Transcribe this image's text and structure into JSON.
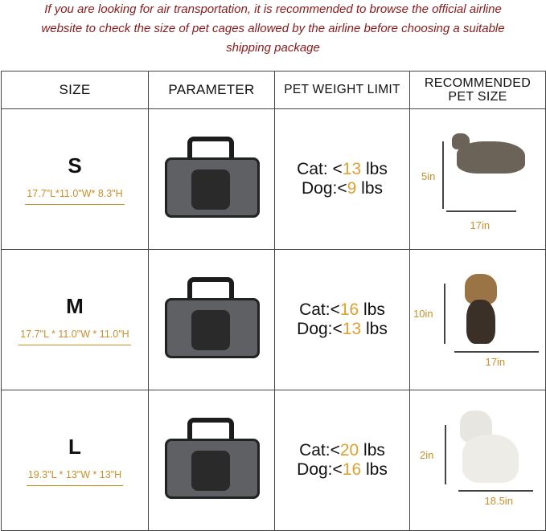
{
  "notice": [
    "If you are looking for air transportation, it is recommended to browse the official airline",
    "website to check the size of pet cages allowed by the airline before choosing a suitable",
    "shipping package"
  ],
  "headers": {
    "size": "SIZE",
    "parameter": "PARAMETER",
    "weight": "PET WEIGHT LIMIT",
    "recommended": "RECOMMENDED PET SIZE"
  },
  "rows": [
    {
      "size": "S",
      "dims": "17.7\"L*11.0\"W* 8.3\"H",
      "cat_label": "Cat: <",
      "cat": "13",
      "dog_label": "Dog:<",
      "dog": "9",
      "unit": " lbs",
      "pet": "cat",
      "pet_height": "5in",
      "pet_length": "17in"
    },
    {
      "size": "M",
      "dims": "17.7\"L * 11.0\"W * 11.0\"H",
      "cat_label": "Cat:<",
      "cat": "16",
      "dog_label": "Dog:<",
      "dog": "13",
      "unit": " lbs",
      "pet": "yorkshire-terrier",
      "pet_height": "10in",
      "pet_length": "17in"
    },
    {
      "size": "L",
      "dims": "19.3\"L * 13\"W * 13\"H",
      "cat_label": "Cat:<",
      "cat": "20",
      "dog_label": "Dog:<",
      "dog": "16",
      "unit": " lbs",
      "pet": "white-terrier",
      "pet_height": "2in",
      "pet_length": "18.5in"
    }
  ],
  "colors": {
    "notice": "#8a1a1a",
    "accent": "#e0a030",
    "dims": "#c9902a"
  }
}
